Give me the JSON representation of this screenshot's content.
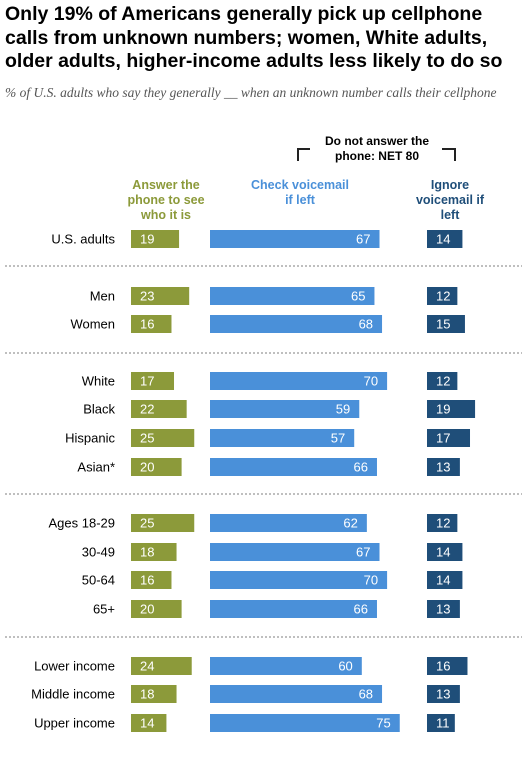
{
  "title": "Only 19% of Americans generally pick up cellphone calls from unknown numbers; women, White adults, older adults, higher-income adults less likely to do so",
  "subtitle": "% of U.S. adults who say they generally __ when an unknown number calls their cellphone",
  "net_label": "Do not answer the phone: NET 80",
  "column_headers": {
    "answer": "Answer the phone to see who it is",
    "check": "Check voicemail if left",
    "ignore": "Ignore voicemail if left"
  },
  "colors": {
    "answer": "#8c9a3a",
    "check": "#4a90d9",
    "ignore": "#1f4e79"
  },
  "chart_data": {
    "type": "bar",
    "categories": [
      "U.S. adults",
      "Men",
      "Women",
      "White",
      "Black",
      "Hispanic",
      "Asian*",
      "Ages 18-29",
      "30-49",
      "50-64",
      "65+",
      "Lower income",
      "Middle income",
      "Upper income"
    ],
    "groups": [
      [
        0
      ],
      [
        1,
        2
      ],
      [
        3,
        4,
        5,
        6
      ],
      [
        7,
        8,
        9,
        10
      ],
      [
        11,
        12,
        13
      ]
    ],
    "series": [
      {
        "name": "Answer the phone to see who it is",
        "values": [
          19,
          23,
          16,
          17,
          22,
          25,
          20,
          25,
          18,
          16,
          20,
          24,
          18,
          14
        ]
      },
      {
        "name": "Check voicemail if left",
        "values": [
          67,
          65,
          68,
          70,
          59,
          57,
          66,
          62,
          67,
          70,
          66,
          60,
          68,
          75
        ]
      },
      {
        "name": "Ignore voicemail if left",
        "values": [
          14,
          12,
          15,
          12,
          19,
          17,
          13,
          12,
          14,
          14,
          13,
          16,
          13,
          11
        ]
      }
    ]
  }
}
